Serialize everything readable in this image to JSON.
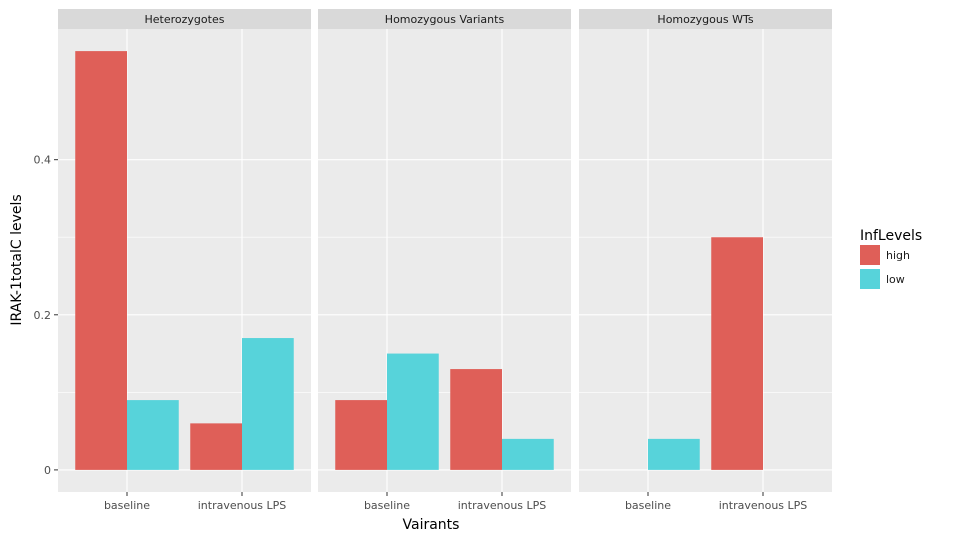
{
  "chart_data": {
    "type": "bar",
    "facets": [
      "Heterozygotes",
      "Homozygous Variants",
      "Homozygous WTs"
    ],
    "categories": [
      "baseline",
      "intravenous LPS"
    ],
    "series": [
      {
        "name": "high",
        "color": "#df5f58",
        "values": [
          [
            0.54,
            0.06
          ],
          [
            0.09,
            0.13
          ],
          [
            null,
            0.3
          ]
        ]
      },
      {
        "name": "low",
        "color": "#57d3da",
        "values": [
          [
            0.09,
            0.17
          ],
          [
            0.15,
            0.04
          ],
          [
            0.04,
            null
          ]
        ]
      }
    ],
    "xlabel": "Vairants",
    "ylabel": "IRAK-1totalC levels",
    "ylim": [
      -0.0285,
      0.5685
    ],
    "yticks": [
      0,
      0.2,
      0.4
    ],
    "ytick_labels": [
      "0",
      "0.2",
      "0.4"
    ],
    "legend": {
      "title": "InfLevels",
      "entries": [
        "high",
        "low"
      ],
      "position": "right"
    },
    "grid": true,
    "colors": {
      "panel_bg": "#ebebeb",
      "strip_bg": "#d9d9d9",
      "grid": "#ffffff"
    }
  }
}
